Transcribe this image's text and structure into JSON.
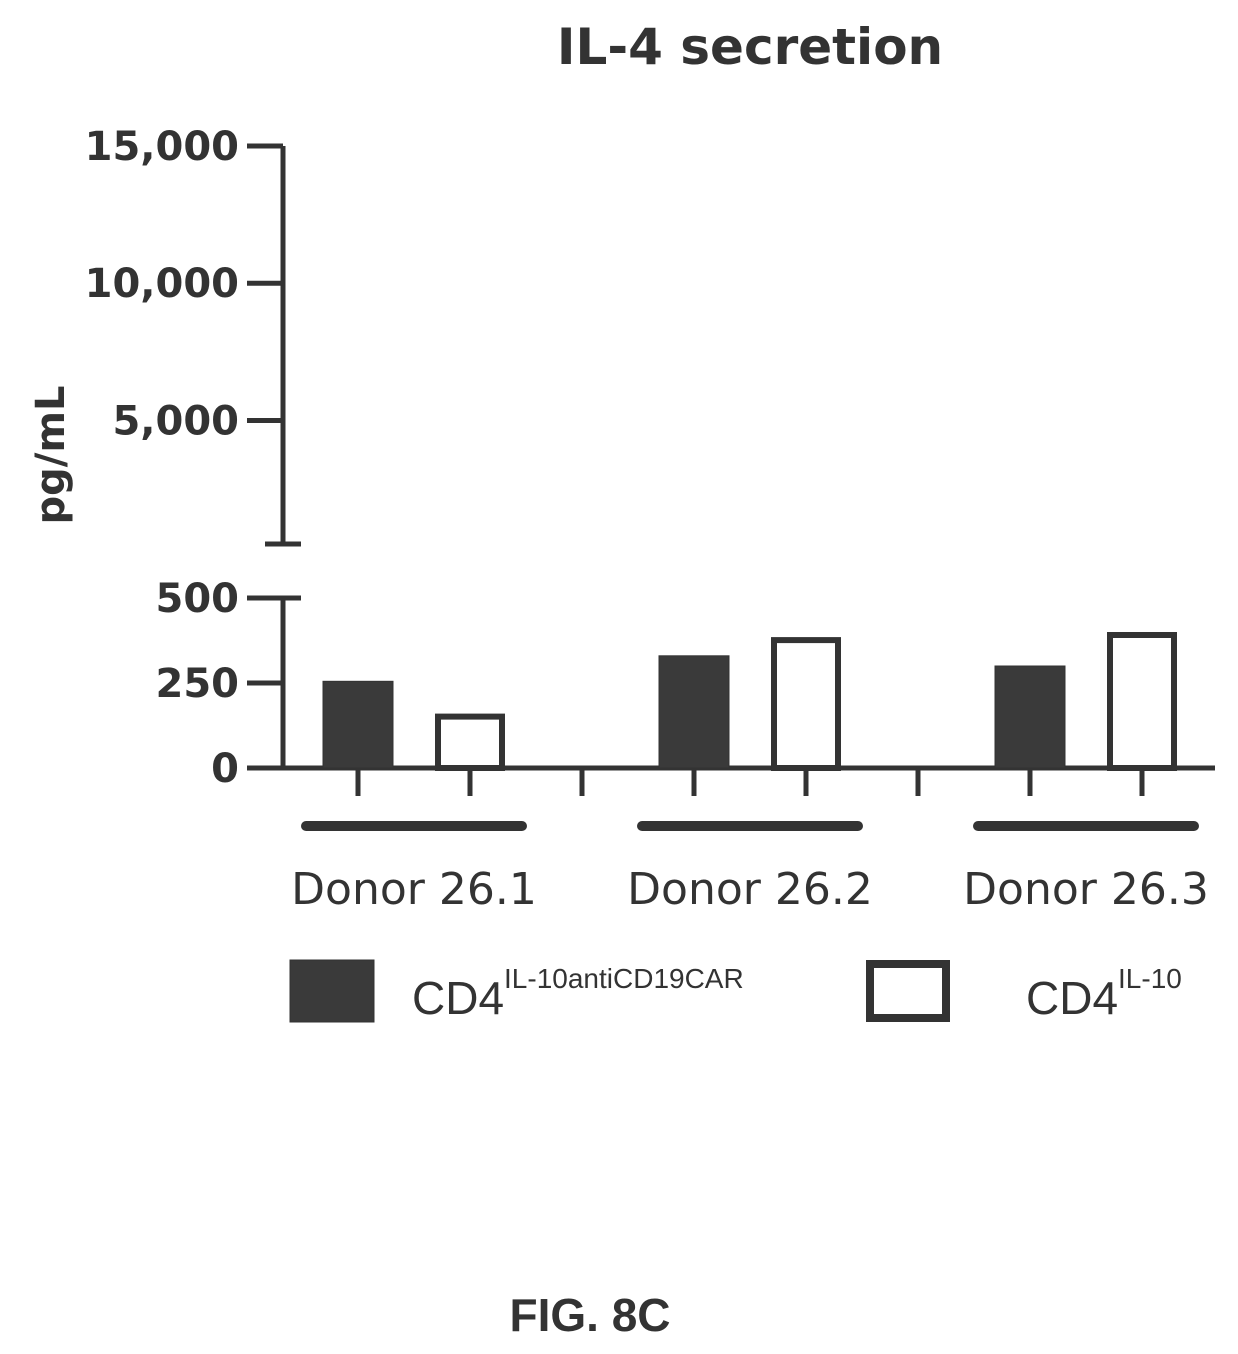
{
  "figure_label": "FIG. 8C",
  "chart_data": {
    "type": "bar",
    "title": "IL-4 secretion",
    "xlabel": "",
    "ylabel": "pg/mL",
    "axis_break": true,
    "lower_segment": {
      "ylim": [
        0,
        500
      ],
      "ticks": [
        0,
        250,
        500
      ],
      "tick_labels": [
        "0",
        "250",
        "500"
      ]
    },
    "upper_segment": {
      "ylim": [
        500,
        15000
      ],
      "ticks": [
        5000,
        10000,
        15000
      ],
      "tick_labels": [
        "5,000",
        "10,000",
        "15,000"
      ]
    },
    "categories": [
      "Donor 26.1",
      "Donor 26.2",
      "Donor 26.3"
    ],
    "series": [
      {
        "name": "CD4",
        "name_superscript": "IL-10antiCD19CAR",
        "fill": "#3a3a3a",
        "values": [
          255,
          330,
          300
        ]
      },
      {
        "name": "CD4",
        "name_superscript": "IL-10",
        "fill": "#ffffff",
        "values": [
          160,
          385,
          400
        ]
      }
    ],
    "legend_position": "bottom",
    "grid": false
  }
}
